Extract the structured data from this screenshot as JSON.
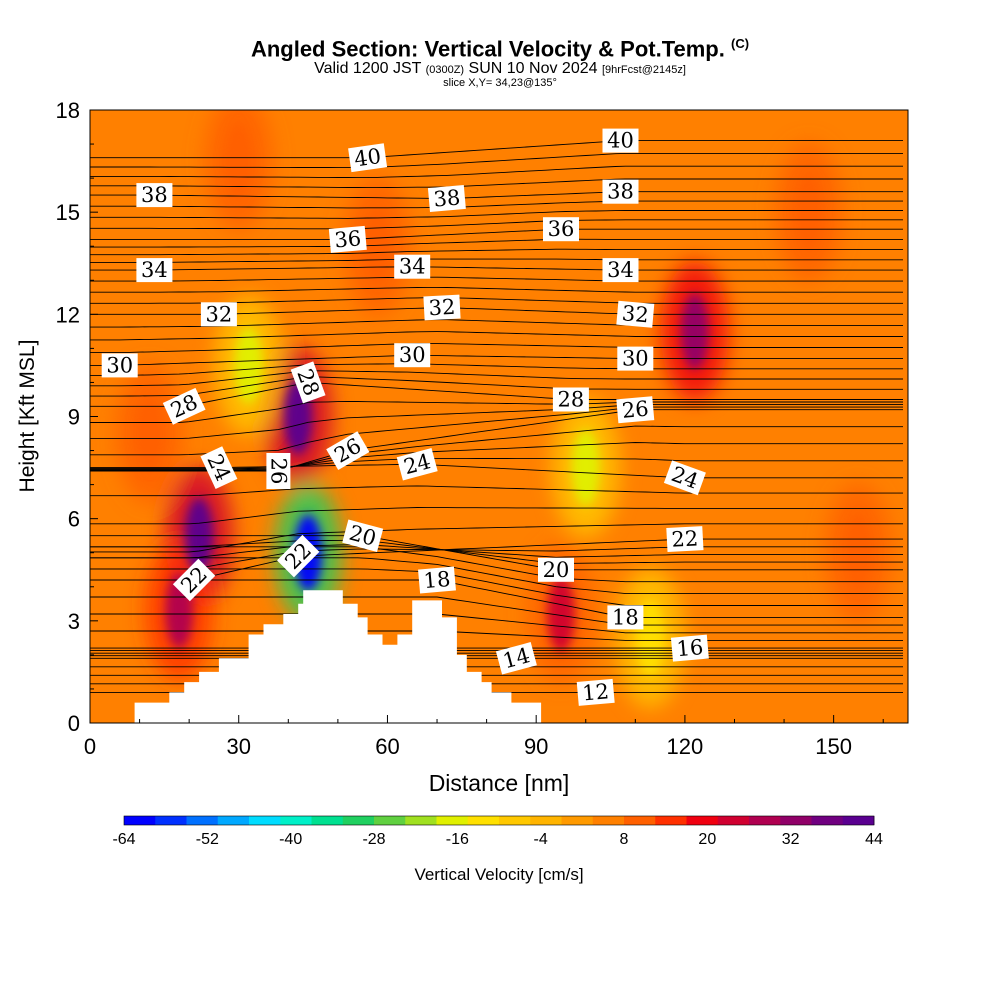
{
  "header": {
    "title": "Angled Section: Vertical Velocity & Pot.Temp.",
    "copyright": "(C)",
    "valid_prefix": "Valid 1200 JST",
    "valid_utc": "(0300Z)",
    "valid_date": "SUN 10 Nov 2024",
    "valid_fcst": "[9hrFcst@2145z]",
    "slice": "slice X,Y= 34,23@135°"
  },
  "chart_data": {
    "type": "heatmap",
    "title": "Angled Section: Vertical Velocity & Pot.Temp.",
    "xlabel": "Distance [nm]",
    "ylabel": "Height [Kft MSL]",
    "xlim": [
      0,
      165
    ],
    "ylim": [
      0,
      18
    ],
    "x_ticks": [
      "0",
      "30",
      "60",
      "90",
      "120",
      "150"
    ],
    "y_ticks": [
      "0",
      "3",
      "6",
      "9",
      "12",
      "15",
      "18"
    ],
    "background_value": 4,
    "colorbar": {
      "label": "Vertical Velocity [cm/s]",
      "min": -64,
      "max": 44,
      "tick_labels": [
        "-64",
        "-52",
        "-40",
        "-28",
        "-16",
        "-4",
        "8",
        "20",
        "32",
        "44"
      ],
      "colors": [
        "#0000ff",
        "#0030ff",
        "#0070ff",
        "#00a8ff",
        "#00dcff",
        "#00f0c8",
        "#00e090",
        "#20d060",
        "#60d040",
        "#a0e020",
        "#e0f000",
        "#ffe000",
        "#ffc800",
        "#ffb400",
        "#ff9a00",
        "#ff8000",
        "#ff6000",
        "#ff3000",
        "#f00010",
        "#d00030",
        "#b00050",
        "#900068",
        "#700080",
        "#5a0090"
      ]
    },
    "vertical_velocity_features": [
      {
        "x": 22,
        "y": 5.5,
        "value": 44
      },
      {
        "x": 18,
        "y": 3.3,
        "value": 26
      },
      {
        "x": 42,
        "y": 9.0,
        "value": 44
      },
      {
        "x": 44,
        "y": 5.0,
        "value": -64
      },
      {
        "x": 32,
        "y": 10.5,
        "value": -16
      },
      {
        "x": 95,
        "y": 3.2,
        "value": 22
      },
      {
        "x": 100,
        "y": 7.5,
        "value": -18
      },
      {
        "x": 113,
        "y": 2.5,
        "value": -14
      },
      {
        "x": 122,
        "y": 11.5,
        "value": 34
      },
      {
        "x": 12,
        "y": 8.5,
        "value": 12
      },
      {
        "x": 30,
        "y": 16.5,
        "value": 12
      },
      {
        "x": 145,
        "y": 15.0,
        "value": 12
      },
      {
        "x": 155,
        "y": 5.0,
        "value": 12
      },
      {
        "x": 58,
        "y": 14.0,
        "value": 10
      }
    ],
    "terrain_profile": [
      {
        "x": 0,
        "y": 0
      },
      {
        "x": 9,
        "y": 0
      },
      {
        "x": 9,
        "y": 0.6
      },
      {
        "x": 16,
        "y": 0.6
      },
      {
        "x": 16,
        "y": 0.9
      },
      {
        "x": 19,
        "y": 0.9
      },
      {
        "x": 19,
        "y": 1.2
      },
      {
        "x": 22,
        "y": 1.2
      },
      {
        "x": 22,
        "y": 1.5
      },
      {
        "x": 26,
        "y": 1.5
      },
      {
        "x": 26,
        "y": 1.9
      },
      {
        "x": 32,
        "y": 1.9
      },
      {
        "x": 32,
        "y": 2.6
      },
      {
        "x": 35,
        "y": 2.6
      },
      {
        "x": 35,
        "y": 2.9
      },
      {
        "x": 39,
        "y": 2.9
      },
      {
        "x": 39,
        "y": 3.2
      },
      {
        "x": 42,
        "y": 3.2
      },
      {
        "x": 42,
        "y": 3.5
      },
      {
        "x": 43,
        "y": 3.5
      },
      {
        "x": 43,
        "y": 3.9
      },
      {
        "x": 51,
        "y": 3.9
      },
      {
        "x": 51,
        "y": 3.5
      },
      {
        "x": 54,
        "y": 3.5
      },
      {
        "x": 54,
        "y": 3.1
      },
      {
        "x": 56,
        "y": 3.1
      },
      {
        "x": 56,
        "y": 2.6
      },
      {
        "x": 59,
        "y": 2.6
      },
      {
        "x": 59,
        "y": 2.3
      },
      {
        "x": 62,
        "y": 2.3
      },
      {
        "x": 62,
        "y": 2.6
      },
      {
        "x": 65,
        "y": 2.6
      },
      {
        "x": 65,
        "y": 3.6
      },
      {
        "x": 71,
        "y": 3.6
      },
      {
        "x": 71,
        "y": 3.1
      },
      {
        "x": 74,
        "y": 3.1
      },
      {
        "x": 74,
        "y": 2.0
      },
      {
        "x": 76,
        "y": 2.0
      },
      {
        "x": 76,
        "y": 1.5
      },
      {
        "x": 79,
        "y": 1.5
      },
      {
        "x": 79,
        "y": 1.2
      },
      {
        "x": 81,
        "y": 1.2
      },
      {
        "x": 81,
        "y": 0.9
      },
      {
        "x": 85,
        "y": 0.9
      },
      {
        "x": 85,
        "y": 0.6
      },
      {
        "x": 91,
        "y": 0.6
      },
      {
        "x": 91,
        "y": 0
      },
      {
        "x": 165,
        "y": 0
      }
    ],
    "potential_temperature_labels": [
      {
        "text": "40",
        "x": 56,
        "y": 16.6,
        "rotate": -8
      },
      {
        "text": "40",
        "x": 107,
        "y": 17.1,
        "rotate": 0
      },
      {
        "text": "38",
        "x": 13,
        "y": 15.5,
        "rotate": 0
      },
      {
        "text": "38",
        "x": 72,
        "y": 15.4,
        "rotate": -5
      },
      {
        "text": "38",
        "x": 107,
        "y": 15.6,
        "rotate": 0
      },
      {
        "text": "36",
        "x": 52,
        "y": 14.2,
        "rotate": -5
      },
      {
        "text": "36",
        "x": 95,
        "y": 14.5,
        "rotate": 0
      },
      {
        "text": "34",
        "x": 13,
        "y": 13.3,
        "rotate": 0
      },
      {
        "text": "34",
        "x": 65,
        "y": 13.4,
        "rotate": 0
      },
      {
        "text": "34",
        "x": 107,
        "y": 13.3,
        "rotate": 0
      },
      {
        "text": "32",
        "x": 26,
        "y": 12.0,
        "rotate": 0
      },
      {
        "text": "32",
        "x": 71,
        "y": 12.2,
        "rotate": -3
      },
      {
        "text": "32",
        "x": 110,
        "y": 12.0,
        "rotate": 5
      },
      {
        "text": "30",
        "x": 6,
        "y": 10.5,
        "rotate": 0
      },
      {
        "text": "30",
        "x": 65,
        "y": 10.8,
        "rotate": 0
      },
      {
        "text": "30",
        "x": 110,
        "y": 10.7,
        "rotate": 0
      },
      {
        "text": "28",
        "x": 19,
        "y": 9.3,
        "rotate": -25
      },
      {
        "text": "28",
        "x": 44,
        "y": 10.0,
        "rotate": 70
      },
      {
        "text": "28",
        "x": 97,
        "y": 9.5,
        "rotate": 0
      },
      {
        "text": "26",
        "x": 38,
        "y": 7.4,
        "rotate": 90
      },
      {
        "text": "26",
        "x": 52,
        "y": 8.0,
        "rotate": -30
      },
      {
        "text": "26",
        "x": 110,
        "y": 9.2,
        "rotate": -5
      },
      {
        "text": "24",
        "x": 26,
        "y": 7.5,
        "rotate": 65
      },
      {
        "text": "24",
        "x": 66,
        "y": 7.6,
        "rotate": -15
      },
      {
        "text": "24",
        "x": 120,
        "y": 7.2,
        "rotate": 20
      },
      {
        "text": "22",
        "x": 21,
        "y": 4.2,
        "rotate": -45
      },
      {
        "text": "22",
        "x": 42,
        "y": 4.9,
        "rotate": -45
      },
      {
        "text": "22",
        "x": 120,
        "y": 5.4,
        "rotate": -3
      },
      {
        "text": "20",
        "x": 55,
        "y": 5.5,
        "rotate": 15
      },
      {
        "text": "20",
        "x": 94,
        "y": 4.5,
        "rotate": 0
      },
      {
        "text": "18",
        "x": 70,
        "y": 4.2,
        "rotate": -5
      },
      {
        "text": "18",
        "x": 108,
        "y": 3.1,
        "rotate": 0
      },
      {
        "text": "16",
        "x": 121,
        "y": 2.2,
        "rotate": -5
      },
      {
        "text": "14",
        "x": 86,
        "y": 1.9,
        "rotate": -15
      },
      {
        "text": "12",
        "x": 102,
        "y": 0.9,
        "rotate": -5
      }
    ]
  }
}
